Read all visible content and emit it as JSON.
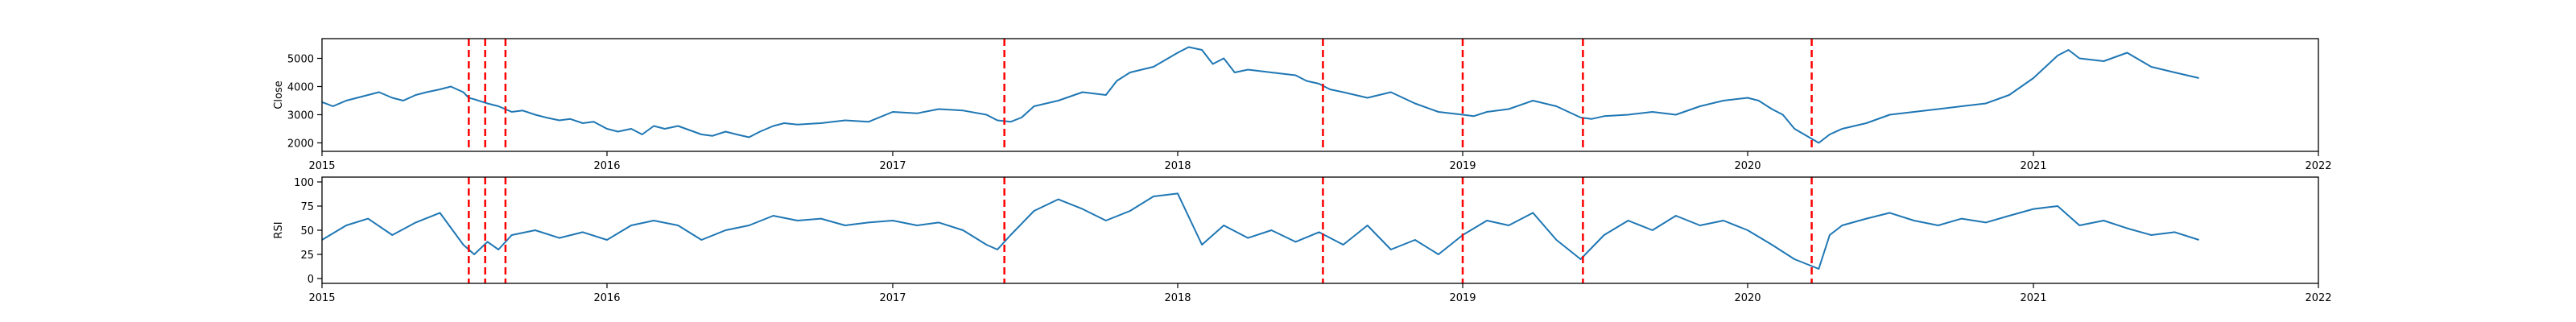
{
  "chart_data": [
    {
      "type": "line",
      "xlabel": "",
      "ylabel": "Close",
      "xlim": [
        "2015-01-01",
        "2022-01-01"
      ],
      "ylim": [
        1700,
        5700
      ],
      "x_ticks": [
        "2015",
        "2016",
        "2017",
        "2018",
        "2019",
        "2020",
        "2021",
        "2022"
      ],
      "y_ticks": [
        2000,
        3000,
        4000,
        5000
      ],
      "grid": false,
      "series": [
        {
          "color": "#1f77b4",
          "points": [
            [
              "2015-01-01",
              3450
            ],
            [
              "2015-01-15",
              3300
            ],
            [
              "2015-02-01",
              3500
            ],
            [
              "2015-02-15",
              3600
            ],
            [
              "2015-03-01",
              3700
            ],
            [
              "2015-03-15",
              3800
            ],
            [
              "2015-04-01",
              3600
            ],
            [
              "2015-04-15",
              3500
            ],
            [
              "2015-05-01",
              3700
            ],
            [
              "2015-05-15",
              3800
            ],
            [
              "2015-06-01",
              3900
            ],
            [
              "2015-06-15",
              4000
            ],
            [
              "2015-07-01",
              3800
            ],
            [
              "2015-07-08",
              3600
            ],
            [
              "2015-07-15",
              3550
            ],
            [
              "2015-08-01",
              3400
            ],
            [
              "2015-08-15",
              3300
            ],
            [
              "2015-09-01",
              3100
            ],
            [
              "2015-09-15",
              3150
            ],
            [
              "2015-10-01",
              3000
            ],
            [
              "2015-10-15",
              2900
            ],
            [
              "2015-11-01",
              2800
            ],
            [
              "2015-11-15",
              2850
            ],
            [
              "2015-12-01",
              2700
            ],
            [
              "2015-12-15",
              2750
            ],
            [
              "2016-01-01",
              2500
            ],
            [
              "2016-01-15",
              2400
            ],
            [
              "2016-02-01",
              2500
            ],
            [
              "2016-02-15",
              2300
            ],
            [
              "2016-03-01",
              2600
            ],
            [
              "2016-03-15",
              2500
            ],
            [
              "2016-04-01",
              2600
            ],
            [
              "2016-05-01",
              2300
            ],
            [
              "2016-05-15",
              2250
            ],
            [
              "2016-06-01",
              2400
            ],
            [
              "2016-06-15",
              2300
            ],
            [
              "2016-07-01",
              2200
            ],
            [
              "2016-07-15",
              2400
            ],
            [
              "2016-08-01",
              2600
            ],
            [
              "2016-08-15",
              2700
            ],
            [
              "2016-09-01",
              2650
            ],
            [
              "2016-10-01",
              2700
            ],
            [
              "2016-11-01",
              2800
            ],
            [
              "2016-12-01",
              2750
            ],
            [
              "2017-01-01",
              3100
            ],
            [
              "2017-02-01",
              3050
            ],
            [
              "2017-03-01",
              3200
            ],
            [
              "2017-04-01",
              3150
            ],
            [
              "2017-05-01",
              3000
            ],
            [
              "2017-05-15",
              2800
            ],
            [
              "2017-06-01",
              2750
            ],
            [
              "2017-06-15",
              2900
            ],
            [
              "2017-07-01",
              3300
            ],
            [
              "2017-08-01",
              3500
            ],
            [
              "2017-09-01",
              3800
            ],
            [
              "2017-10-01",
              3700
            ],
            [
              "2017-10-15",
              4200
            ],
            [
              "2017-11-01",
              4500
            ],
            [
              "2017-12-01",
              4700
            ],
            [
              "2018-01-01",
              5200
            ],
            [
              "2018-01-15",
              5400
            ],
            [
              "2018-02-01",
              5300
            ],
            [
              "2018-02-15",
              4800
            ],
            [
              "2018-03-01",
              5000
            ],
            [
              "2018-03-15",
              4500
            ],
            [
              "2018-04-01",
              4600
            ],
            [
              "2018-05-01",
              4500
            ],
            [
              "2018-06-01",
              4400
            ],
            [
              "2018-06-15",
              4200
            ],
            [
              "2018-07-01",
              4100
            ],
            [
              "2018-07-15",
              3900
            ],
            [
              "2018-08-01",
              3800
            ],
            [
              "2018-09-01",
              3600
            ],
            [
              "2018-10-01",
              3800
            ],
            [
              "2018-11-01",
              3400
            ],
            [
              "2018-12-01",
              3100
            ],
            [
              "2019-01-01",
              3000
            ],
            [
              "2019-01-15",
              2950
            ],
            [
              "2019-02-01",
              3100
            ],
            [
              "2019-03-01",
              3200
            ],
            [
              "2019-04-01",
              3500
            ],
            [
              "2019-05-01",
              3300
            ],
            [
              "2019-06-01",
              2900
            ],
            [
              "2019-06-15",
              2850
            ],
            [
              "2019-07-01",
              2950
            ],
            [
              "2019-08-01",
              3000
            ],
            [
              "2019-09-01",
              3100
            ],
            [
              "2019-10-01",
              3000
            ],
            [
              "2019-11-01",
              3300
            ],
            [
              "2019-12-01",
              3500
            ],
            [
              "2020-01-01",
              3600
            ],
            [
              "2020-01-15",
              3500
            ],
            [
              "2020-02-01",
              3200
            ],
            [
              "2020-02-15",
              3000
            ],
            [
              "2020-03-01",
              2500
            ],
            [
              "2020-04-01",
              2000
            ],
            [
              "2020-04-15",
              2300
            ],
            [
              "2020-05-01",
              2500
            ],
            [
              "2020-06-01",
              2700
            ],
            [
              "2020-07-01",
              3000
            ],
            [
              "2020-08-01",
              3100
            ],
            [
              "2020-09-01",
              3200
            ],
            [
              "2020-10-01",
              3300
            ],
            [
              "2020-11-01",
              3400
            ],
            [
              "2020-12-01",
              3700
            ],
            [
              "2021-01-01",
              4300
            ],
            [
              "2021-02-01",
              5100
            ],
            [
              "2021-02-15",
              5300
            ],
            [
              "2021-03-01",
              5000
            ],
            [
              "2021-04-01",
              4900
            ],
            [
              "2021-05-01",
              5200
            ],
            [
              "2021-06-01",
              4700
            ],
            [
              "2021-07-01",
              4500
            ],
            [
              "2021-08-01",
              4300
            ]
          ]
        }
      ]
    },
    {
      "type": "line",
      "xlabel": "",
      "ylabel": "RSI",
      "xlim": [
        "2015-01-01",
        "2022-01-01"
      ],
      "ylim": [
        -5,
        105
      ],
      "x_ticks": [
        "2015",
        "2016",
        "2017",
        "2018",
        "2019",
        "2020",
        "2021",
        "2022"
      ],
      "y_ticks": [
        0,
        25,
        50,
        75,
        100
      ],
      "grid": false,
      "series": [
        {
          "color": "#1f77b4",
          "points": [
            [
              "2015-01-01",
              40
            ],
            [
              "2015-02-01",
              55
            ],
            [
              "2015-03-01",
              62
            ],
            [
              "2015-04-01",
              45
            ],
            [
              "2015-05-01",
              58
            ],
            [
              "2015-06-01",
              68
            ],
            [
              "2015-07-01",
              35
            ],
            [
              "2015-07-15",
              25
            ],
            [
              "2015-08-01",
              38
            ],
            [
              "2015-08-15",
              30
            ],
            [
              "2015-09-01",
              45
            ],
            [
              "2015-10-01",
              50
            ],
            [
              "2015-11-01",
              42
            ],
            [
              "2015-12-01",
              48
            ],
            [
              "2016-01-01",
              40
            ],
            [
              "2016-02-01",
              55
            ],
            [
              "2016-03-01",
              60
            ],
            [
              "2016-04-01",
              55
            ],
            [
              "2016-05-01",
              40
            ],
            [
              "2016-06-01",
              50
            ],
            [
              "2016-07-01",
              55
            ],
            [
              "2016-08-01",
              65
            ],
            [
              "2016-09-01",
              60
            ],
            [
              "2016-10-01",
              62
            ],
            [
              "2016-11-01",
              55
            ],
            [
              "2016-12-01",
              58
            ],
            [
              "2017-01-01",
              60
            ],
            [
              "2017-02-01",
              55
            ],
            [
              "2017-03-01",
              58
            ],
            [
              "2017-04-01",
              50
            ],
            [
              "2017-05-01",
              35
            ],
            [
              "2017-05-15",
              30
            ],
            [
              "2017-06-01",
              45
            ],
            [
              "2017-07-01",
              70
            ],
            [
              "2017-08-01",
              82
            ],
            [
              "2017-09-01",
              72
            ],
            [
              "2017-10-01",
              60
            ],
            [
              "2017-11-01",
              70
            ],
            [
              "2017-12-01",
              85
            ],
            [
              "2018-01-01",
              88
            ],
            [
              "2018-02-01",
              35
            ],
            [
              "2018-03-01",
              55
            ],
            [
              "2018-04-01",
              42
            ],
            [
              "2018-05-01",
              50
            ],
            [
              "2018-06-01",
              38
            ],
            [
              "2018-07-01",
              48
            ],
            [
              "2018-08-01",
              35
            ],
            [
              "2018-09-01",
              55
            ],
            [
              "2018-10-01",
              30
            ],
            [
              "2018-11-01",
              40
            ],
            [
              "2018-12-01",
              25
            ],
            [
              "2019-01-01",
              45
            ],
            [
              "2019-02-01",
              60
            ],
            [
              "2019-03-01",
              55
            ],
            [
              "2019-04-01",
              68
            ],
            [
              "2019-05-01",
              40
            ],
            [
              "2019-06-01",
              20
            ],
            [
              "2019-07-01",
              45
            ],
            [
              "2019-08-01",
              60
            ],
            [
              "2019-09-01",
              50
            ],
            [
              "2019-10-01",
              65
            ],
            [
              "2019-11-01",
              55
            ],
            [
              "2019-12-01",
              60
            ],
            [
              "2020-01-01",
              50
            ],
            [
              "2020-02-01",
              35
            ],
            [
              "2020-03-01",
              20
            ],
            [
              "2020-04-01",
              10
            ],
            [
              "2020-04-15",
              45
            ],
            [
              "2020-05-01",
              55
            ],
            [
              "2020-06-01",
              62
            ],
            [
              "2020-07-01",
              68
            ],
            [
              "2020-08-01",
              60
            ],
            [
              "2020-09-01",
              55
            ],
            [
              "2020-10-01",
              62
            ],
            [
              "2020-11-01",
              58
            ],
            [
              "2020-12-01",
              65
            ],
            [
              "2021-01-01",
              72
            ],
            [
              "2021-02-01",
              75
            ],
            [
              "2021-03-01",
              55
            ],
            [
              "2021-04-01",
              60
            ],
            [
              "2021-05-01",
              52
            ],
            [
              "2021-06-01",
              45
            ],
            [
              "2021-07-01",
              48
            ],
            [
              "2021-08-01",
              40
            ]
          ]
        }
      ]
    }
  ],
  "event_markers": {
    "color": "#ff0000",
    "dates": [
      "2015-07-08",
      "2015-07-29",
      "2015-08-24",
      "2017-05-24",
      "2018-07-06",
      "2019-01-01",
      "2019-06-04",
      "2020-03-23"
    ]
  }
}
